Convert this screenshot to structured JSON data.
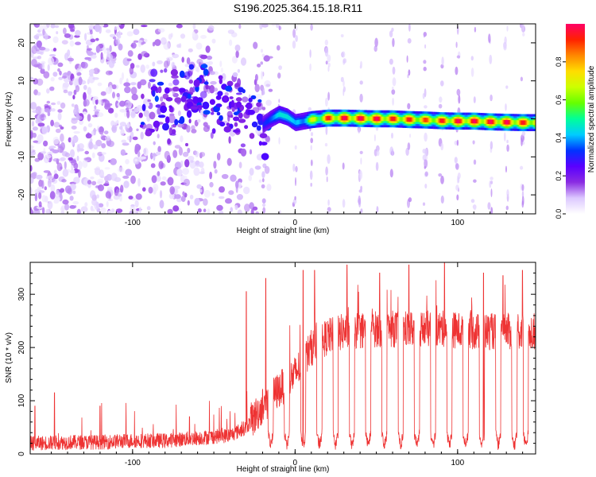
{
  "figure_title": "S196.2025.364.15.18.R11",
  "chart_data": [
    {
      "type": "heatmap",
      "title": "",
      "xlabel": "Height of straight line (km)",
      "ylabel": "Frequency (Hz)",
      "xlim": [
        -163,
        148
      ],
      "ylim": [
        -25,
        25
      ],
      "xticks": [
        -100,
        0,
        100
      ],
      "yticks": [
        -20,
        -10,
        0,
        10,
        20
      ],
      "colorbar": {
        "label": "Normalized spectral amplitude",
        "range": [
          0,
          1
        ],
        "ticks": [
          0.0,
          0.2,
          0.4,
          0.6,
          0.8
        ],
        "colormap": [
          "#ffffff",
          "#dcc8ff",
          "#8a2be2",
          "#5a00ff",
          "#0033ff",
          "#00ccff",
          "#00ff99",
          "#66ff00",
          "#ccff00",
          "#ffdd00",
          "#ff8800",
          "#ff2200",
          "#ff0066"
        ]
      },
      "ridge": {
        "x": [
          -20,
          -15,
          -10,
          -5,
          0,
          10,
          20,
          30,
          40,
          50,
          60,
          70,
          80,
          90,
          100,
          110,
          120,
          130,
          140,
          148
        ],
        "freq": [
          -1.5,
          0,
          1.2,
          0.5,
          -1,
          -0.2,
          0.2,
          0.2,
          0.1,
          0,
          0,
          -0.2,
          -0.3,
          -0.5,
          -0.6,
          -0.6,
          -0.8,
          -0.9,
          -1.0,
          -1.0
        ],
        "peak_amplitude": [
          0.15,
          0.2,
          0.3,
          0.3,
          0.25,
          0.55,
          0.8,
          0.85,
          0.85,
          0.85,
          0.8,
          0.8,
          0.75,
          0.8,
          0.85,
          0.85,
          0.85,
          0.85,
          0.8,
          0.8
        ]
      }
    },
    {
      "type": "line",
      "title": "",
      "xlabel": "Height of straight line (km)",
      "ylabel": "SNR (10 * v/v)",
      "xlim": [
        -163,
        148
      ],
      "ylim": [
        0,
        360
      ],
      "xticks": [
        -100,
        0,
        100
      ],
      "yticks": [
        0,
        100,
        200,
        300
      ],
      "color": "#ee3333",
      "series": [
        {
          "name": "SNR",
          "envelope": {
            "x": [
              -163,
              -140,
              -120,
              -100,
              -80,
              -60,
              -40,
              -30,
              -20,
              -10,
              0,
              10,
              20,
              30,
              50,
              70,
              90,
              110,
              130,
              148
            ],
            "baseline": [
              20,
              22,
              22,
              25,
              25,
              30,
              35,
              50,
              90,
              120,
              150,
              200,
              220,
              230,
              235,
              235,
              235,
              230,
              230,
              230
            ]
          },
          "dropouts_x": [
            -15,
            -5,
            5,
            15,
            25,
            35,
            45,
            55,
            65,
            75,
            85,
            95,
            105,
            115,
            125,
            135,
            142
          ],
          "spikes": [
            {
              "x": -160,
              "y": 90
            },
            {
              "x": -148,
              "y": 115
            },
            {
              "x": -120,
              "y": 90
            },
            {
              "x": -65,
              "y": 70
            },
            {
              "x": -30,
              "y": 305
            },
            {
              "x": -18,
              "y": 330
            },
            {
              "x": 5,
              "y": 345
            },
            {
              "x": 12,
              "y": 345
            },
            {
              "x": 32,
              "y": 355
            },
            {
              "x": 52,
              "y": 340
            },
            {
              "x": 70,
              "y": 355
            },
            {
              "x": 92,
              "y": 360
            },
            {
              "x": 116,
              "y": 340
            },
            {
              "x": 128,
              "y": 335
            },
            {
              "x": 140,
              "y": 345
            }
          ]
        }
      ]
    }
  ]
}
